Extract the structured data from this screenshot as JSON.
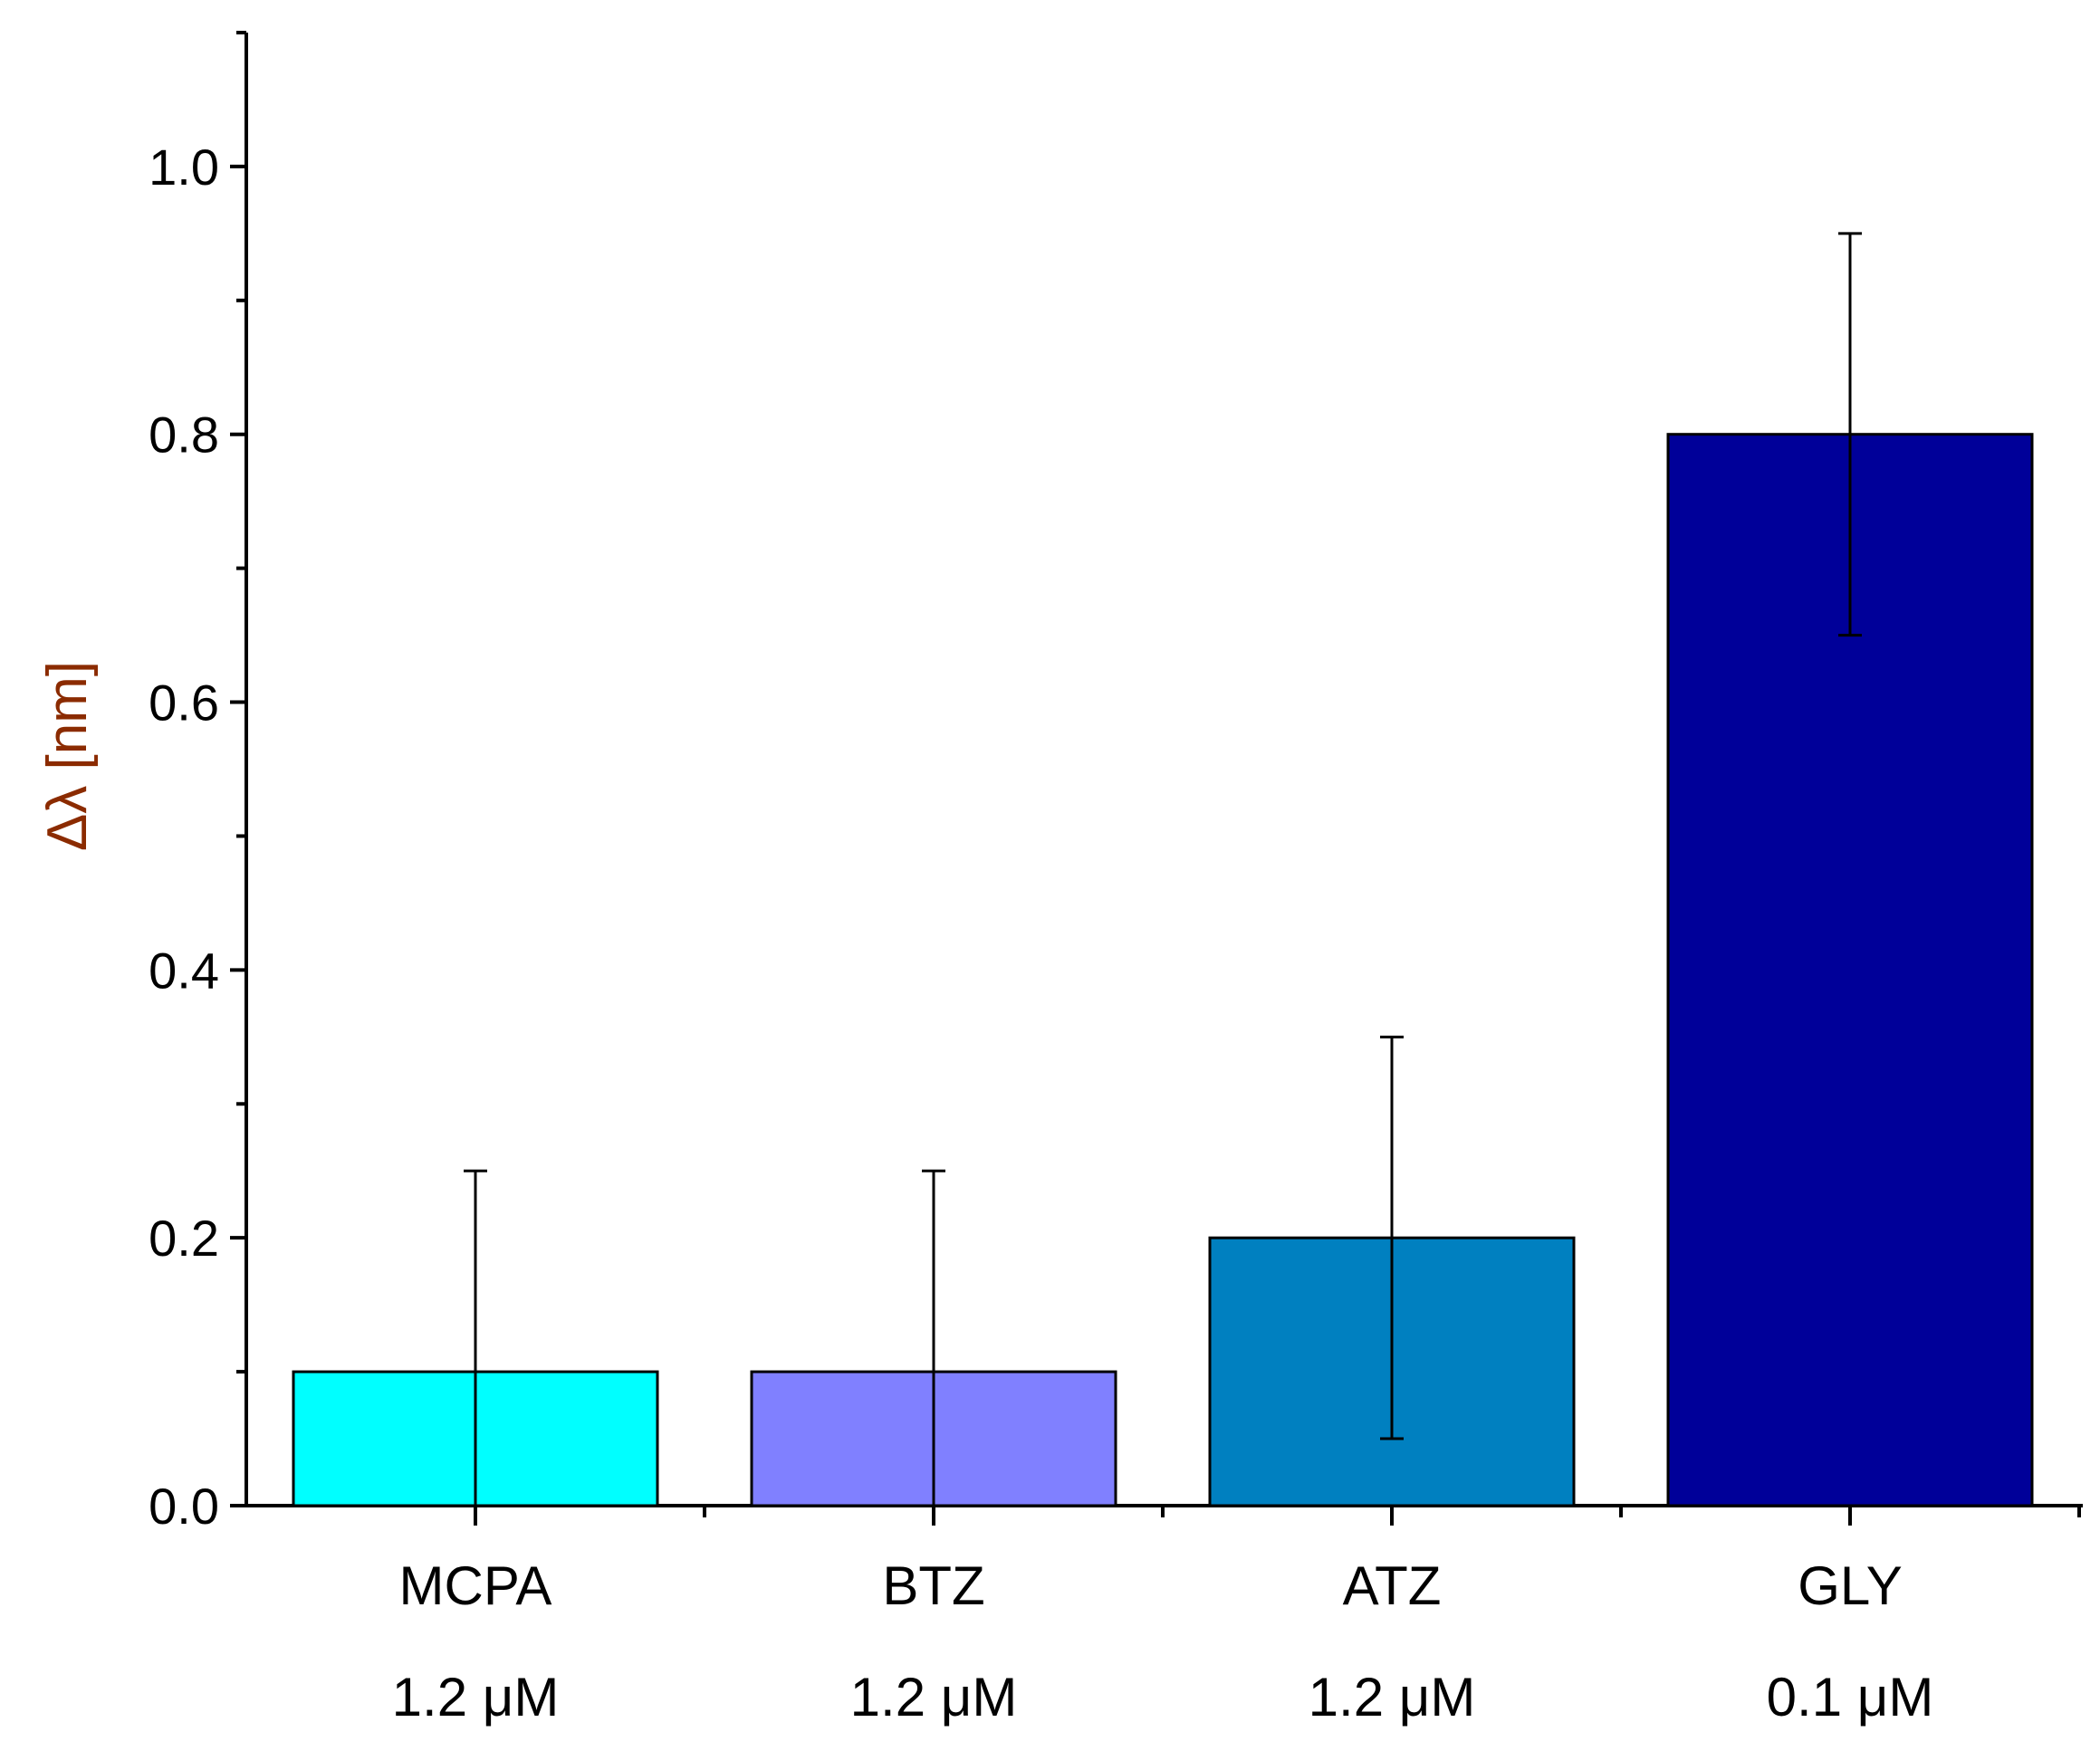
{
  "chart_data": {
    "type": "bar",
    "title": "",
    "xlabel": "",
    "ylabel": "Δλ [nm]",
    "ylim": [
      0,
      1.1
    ],
    "yticks": [
      0.0,
      0.2,
      0.4,
      0.6,
      0.8,
      1.0
    ],
    "ytick_labels": [
      "0.0",
      "0.2",
      "0.4",
      "0.6",
      "0.8",
      "1.0"
    ],
    "minor_ytick_step": 0.1,
    "grid": false,
    "categories": [
      "MCPA",
      "BTZ",
      "ATZ",
      "GLY"
    ],
    "concentrations": [
      "1.2 μM",
      "1.2 μM",
      "1.2 μM",
      "0.1 μM"
    ],
    "values": [
      0.1,
      0.1,
      0.2,
      0.8
    ],
    "error_low": [
      0.0,
      0.0,
      0.05,
      0.65
    ],
    "error_high": [
      0.25,
      0.25,
      0.35,
      0.95
    ],
    "colors": [
      "#00ffff",
      "#8080ff",
      "#0080c0",
      "#000099"
    ]
  }
}
